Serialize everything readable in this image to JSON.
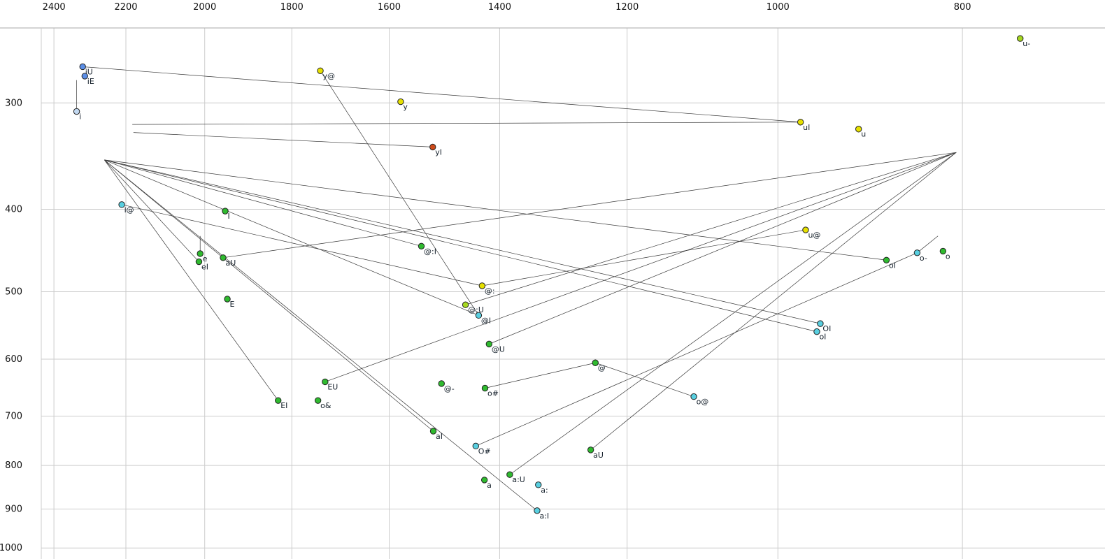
{
  "chart_data": {
    "type": "scatter",
    "title": "",
    "x_axis": {
      "ticks": [
        2400,
        2200,
        2000,
        1800,
        1600,
        1400,
        1200,
        1000,
        800
      ],
      "scale": "log",
      "direction": "decreasing-right"
    },
    "y_axis": {
      "ticks": [
        300,
        400,
        500,
        600,
        700,
        800,
        900,
        1000
      ],
      "scale": "log",
      "direction": "increasing-down"
    },
    "palette": {
      "green": "#2fba2f",
      "yellow": "#e6e000",
      "yellow_green": "#a6d820",
      "cyan": "#58cfe0",
      "blue": "#5b8ee6",
      "pale_blue": "#c2d8f0",
      "red": "#cd4a1a"
    },
    "grid_color": "#cccccc",
    "line_color": "#3a3a3a",
    "points": [
      {
        "label": "u-",
        "f2": 746,
        "f1": 252,
        "color": "yellow_green"
      },
      {
        "label": "iU",
        "f2": 2318,
        "f1": 272,
        "color": "blue"
      },
      {
        "label": "iE",
        "f2": 2312,
        "f1": 279,
        "color": "blue"
      },
      {
        "label": "y@",
        "f2": 1739,
        "f1": 275,
        "color": "yellow"
      },
      {
        "label": "y",
        "f2": 1578,
        "f1": 299,
        "color": "yellow"
      },
      {
        "label": "i",
        "f2": 2335,
        "f1": 307,
        "color": "pale_blue"
      },
      {
        "label": "uI",
        "f2": 973,
        "f1": 316,
        "color": "yellow"
      },
      {
        "label": "u",
        "f2": 907,
        "f1": 322,
        "color": "yellow"
      },
      {
        "label": "yI",
        "f2": 1518,
        "f1": 338,
        "color": "red"
      },
      {
        "label": "i@",
        "f2": 2211,
        "f1": 395,
        "color": "cyan"
      },
      {
        "label": "I",
        "f2": 1951,
        "f1": 402,
        "color": "green"
      },
      {
        "label": "u@",
        "f2": 967,
        "f1": 423,
        "color": "yellow"
      },
      {
        "label": "@:I",
        "f2": 1539,
        "f1": 442,
        "color": "green"
      },
      {
        "label": "o-",
        "f2": 845,
        "f1": 450,
        "color": "cyan"
      },
      {
        "label": "o",
        "f2": 819,
        "f1": 448,
        "color": "green"
      },
      {
        "label": "oI",
        "f2": 877,
        "f1": 459,
        "color": "green"
      },
      {
        "label": "e",
        "f2": 2011,
        "f1": 451,
        "color": "green"
      },
      {
        "label": "eI",
        "f2": 2014,
        "f1": 461,
        "color": "green"
      },
      {
        "label": "aU",
        "f2": 1956,
        "f1": 456,
        "color": "green"
      },
      {
        "label": "@:",
        "f2": 1430,
        "f1": 492,
        "color": "yellow"
      },
      {
        "label": "@:U",
        "f2": 1459,
        "f1": 518,
        "color": "yellow_green"
      },
      {
        "label": "@I",
        "f2": 1436,
        "f1": 533,
        "color": "cyan"
      },
      {
        "label": "E",
        "f2": 1946,
        "f1": 510,
        "color": "green"
      },
      {
        "label": "OI",
        "f2": 950,
        "f1": 545,
        "color": "cyan"
      },
      {
        "label": "oI",
        "f2": 954,
        "f1": 557,
        "color": "cyan"
      },
      {
        "label": "@U",
        "f2": 1418,
        "f1": 576,
        "color": "green"
      },
      {
        "label": "@",
        "f2": 1247,
        "f1": 606,
        "color": "green"
      },
      {
        "label": "EU",
        "f2": 1729,
        "f1": 638,
        "color": "green"
      },
      {
        "label": "@-",
        "f2": 1502,
        "f1": 641,
        "color": "green"
      },
      {
        "label": "o#",
        "f2": 1425,
        "f1": 649,
        "color": "green"
      },
      {
        "label": "o&",
        "f2": 1744,
        "f1": 671,
        "color": "green"
      },
      {
        "label": "EI",
        "f2": 1830,
        "f1": 671,
        "color": "green"
      },
      {
        "label": "o@",
        "f2": 1107,
        "f1": 664,
        "color": "cyan"
      },
      {
        "label": "aI",
        "f2": 1517,
        "f1": 729,
        "color": "green"
      },
      {
        "label": "O#",
        "f2": 1441,
        "f1": 759,
        "color": "cyan"
      },
      {
        "label": "aU",
        "f2": 1254,
        "f1": 767,
        "color": "green"
      },
      {
        "label": "a",
        "f2": 1426,
        "f1": 832,
        "color": "green"
      },
      {
        "label": "a:U",
        "f2": 1383,
        "f1": 820,
        "color": "green"
      },
      {
        "label": "a:",
        "f2": 1336,
        "f1": 843,
        "color": "cyan"
      },
      {
        "label": "a:I",
        "f2": 1338,
        "f1": 904,
        "color": "cyan"
      }
    ],
    "segments": [
      {
        "from": [
          2318,
          272
        ],
        "to": [
          973,
          316
        ]
      },
      {
        "from": [
          973,
          316
        ],
        "to": [
          2183,
          318
        ]
      },
      {
        "from": [
          1518,
          338
        ],
        "to": [
          2180,
          325
        ]
      },
      {
        "from": [
          1517,
          729
        ],
        "to": [
          2258,
          350
        ]
      },
      {
        "from": [
          1338,
          904
        ],
        "to": [
          2258,
          350
        ]
      },
      {
        "from": [
          950,
          545
        ],
        "to": [
          2258,
          350
        ]
      },
      {
        "from": [
          954,
          557
        ],
        "to": [
          2258,
          350
        ]
      },
      {
        "from": [
          877,
          459
        ],
        "to": [
          2258,
          350
        ]
      },
      {
        "from": [
          1436,
          533
        ],
        "to": [
          2258,
          350
        ]
      },
      {
        "from": [
          1539,
          442
        ],
        "to": [
          2258,
          350
        ]
      },
      {
        "from": [
          2014,
          461
        ],
        "to": [
          2258,
          350
        ]
      },
      {
        "from": [
          1830,
          671
        ],
        "to": [
          2258,
          350
        ]
      },
      {
        "from": [
          1956,
          456
        ],
        "to": [
          806,
          343
        ]
      },
      {
        "from": [
          1254,
          767
        ],
        "to": [
          806,
          343
        ]
      },
      {
        "from": [
          1383,
          820
        ],
        "to": [
          806,
          343
        ]
      },
      {
        "from": [
          1418,
          576
        ],
        "to": [
          806,
          343
        ]
      },
      {
        "from": [
          1459,
          518
        ],
        "to": [
          806,
          343
        ]
      },
      {
        "from": [
          1729,
          638
        ],
        "to": [
          806,
          343
        ]
      },
      {
        "from": [
          1739,
          275
        ],
        "to": [
          1436,
          533
        ]
      },
      {
        "from": [
          2211,
          395
        ],
        "to": [
          1430,
          492
        ]
      },
      {
        "from": [
          967,
          423
        ],
        "to": [
          1430,
          492
        ]
      },
      {
        "from": [
          1107,
          664
        ],
        "to": [
          1247,
          606
        ]
      },
      {
        "from": [
          1425,
          649
        ],
        "to": [
          1247,
          606
        ]
      },
      {
        "from": [
          1441,
          759
        ],
        "to": [
          845,
          450
        ]
      },
      {
        "from": [
          845,
          450
        ],
        "to": [
          824,
          430
        ]
      },
      {
        "from": [
          2011,
          451
        ],
        "to": [
          2011,
          430
        ]
      },
      {
        "from": [
          2335,
          307
        ],
        "to": [
          2335,
          282
        ]
      }
    ]
  }
}
